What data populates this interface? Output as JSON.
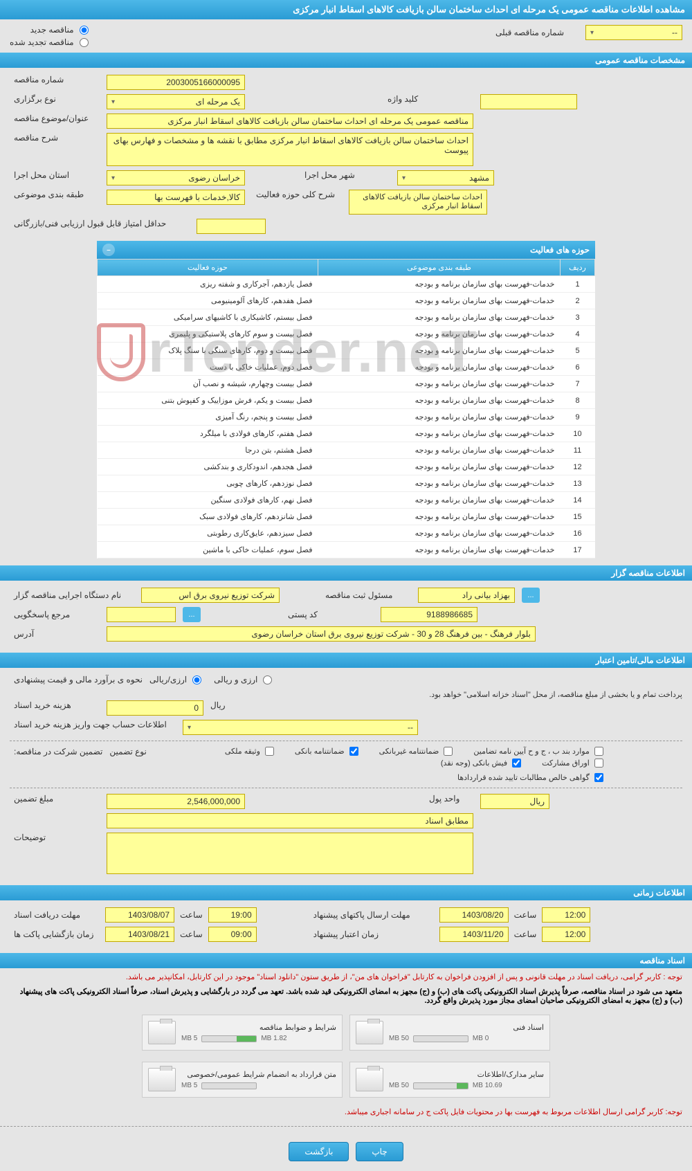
{
  "page_title": "مشاهده اطلاعات مناقصه عمومی یک مرحله ای احداث ساختمان سالن بازیافت کالاهای اسقاط انبار مرکزی",
  "top": {
    "radio_new": "مناقصه جدید",
    "radio_renew": "مناقصه تجدید شده",
    "prev_label": "شماره مناقصه قبلی",
    "prev_value": "--"
  },
  "sections": {
    "general": "مشخصات مناقصه عمومی",
    "organizer": "اطلاعات مناقصه گزار",
    "financial": "اطلاعات مالی/تامین اعتبار",
    "timing": "اطلاعات زمانی",
    "docs": "اسناد مناقصه"
  },
  "general": {
    "number_label": "شماره مناقصه",
    "number": "2003005166000095",
    "type_label": "نوع برگزاری",
    "type": "یک مرحله ای",
    "keyword_label": "کلید واژه",
    "keyword": "",
    "subject_label": "عنوان/موضوع مناقصه",
    "subject": "مناقصه عمومی یک مرحله ای احداث ساختمان سالن بازیافت کالاهای اسقاط انبار مرکزی",
    "desc_label": "شرح مناقصه",
    "desc": "احداث ساختمان سالن بازیافت کالاهای اسقاط انبار مرکزی مطابق با نقشه ها و مشخصات و فهارس بهای پیوست",
    "province_label": "استان محل اجرا",
    "province": "خراسان رضوی",
    "city_label": "شهر محل اجرا",
    "city": "مشهد",
    "category_label": "طبقه بندی موضوعی",
    "category": "کالا,خدمات با فهرست بها",
    "scope_label": "شرح کلی حوزه فعالیت",
    "scope": "احداث ساختمان سالن بازیافت کالاهای اسقاط انبار مرکزی",
    "minscore_label": "حداقل امتیاز قابل قبول ارزیابی فنی/بازرگانی",
    "minscore": ""
  },
  "activity": {
    "title": "حوزه های فعالیت",
    "columns": {
      "row": "ردیف",
      "category": "طبقه بندی موضوعی",
      "scope": "حوزه فعالیت"
    },
    "rows": [
      {
        "n": 1,
        "cat": "خدمات-فهرست بهای سازمان برنامه و بودجه",
        "scope": "فصل یازدهم، آجرکاری و شفته ریزی"
      },
      {
        "n": 2,
        "cat": "خدمات-فهرست بهای سازمان برنامه و بودجه",
        "scope": "فصل هفدهم، کارهای آلومینیومی"
      },
      {
        "n": 3,
        "cat": "خدمات-فهرست بهای سازمان برنامه و بودجه",
        "scope": "فصل بیستم، کاشیکاری با کاشیهای سرامیکی"
      },
      {
        "n": 4,
        "cat": "خدمات-فهرست بهای سازمان برنامه و بودجه",
        "scope": "فصل بیست و سوم کارهای پلاستیکی و پلیمری"
      },
      {
        "n": 5,
        "cat": "خدمات-فهرست بهای سازمان برنامه و بودجه",
        "scope": "فصل بیست و دوم، کارهای سنگی با سنگ پلاک"
      },
      {
        "n": 6,
        "cat": "خدمات-فهرست بهای سازمان برنامه و بودجه",
        "scope": "فصل دوم، عملیات خاکی با دست"
      },
      {
        "n": 7,
        "cat": "خدمات-فهرست بهای سازمان برنامه و بودجه",
        "scope": "فصل بیست وچهارم، شیشه و نصب آن"
      },
      {
        "n": 8,
        "cat": "خدمات-فهرست بهای سازمان برنامه و بودجه",
        "scope": "فصل بیست و یکم، فرش موزاییک و کفپوش بتنی"
      },
      {
        "n": 9,
        "cat": "خدمات-فهرست بهای سازمان برنامه و بودجه",
        "scope": "فصل بیست و پنجم، رنگ آمیزی"
      },
      {
        "n": 10,
        "cat": "خدمات-فهرست بهای سازمان برنامه و بودجه",
        "scope": "فصل هفتم، کارهای فولادی با میلگرد"
      },
      {
        "n": 11,
        "cat": "خدمات-فهرست بهای سازمان برنامه و بودجه",
        "scope": "فصل هشتم، بتن درجا"
      },
      {
        "n": 12,
        "cat": "خدمات-فهرست بهای سازمان برنامه و بودجه",
        "scope": "فصل هجدهم، اندودکاری و بندکشی"
      },
      {
        "n": 13,
        "cat": "خدمات-فهرست بهای سازمان برنامه و بودجه",
        "scope": "فصل نوزدهم، کارهای چوبی"
      },
      {
        "n": 14,
        "cat": "خدمات-فهرست بهای سازمان برنامه و بودجه",
        "scope": "فصل نهم، کارهای فولادی سنگین"
      },
      {
        "n": 15,
        "cat": "خدمات-فهرست بهای سازمان برنامه و بودجه",
        "scope": "فصل شانزدهم، کارهای فولادی سبک"
      },
      {
        "n": 16,
        "cat": "خدمات-فهرست بهای سازمان برنامه و بودجه",
        "scope": "فصل سیزدهم، عایق‌کاری رطوبتی"
      },
      {
        "n": 17,
        "cat": "خدمات-فهرست بهای سازمان برنامه و بودجه",
        "scope": "فصل سوم، عملیات خاکی با ماشین"
      }
    ]
  },
  "organizer": {
    "org_label": "نام دستگاه اجرایی مناقصه گزار",
    "org": "شرکت توزیع نیروی برق اس",
    "registrar_label": "مسئول ثبت مناقصه",
    "registrar": "بهزاد بیانی راد",
    "responder_label": "مرجع پاسخگویی",
    "responder": "",
    "postal_label": "کد پستی",
    "postal": "9188986685",
    "address_label": "آدرس",
    "address": "بلوار فرهنگ - بین فرهنگ 28 و 30 - شرکت توزیع نیروی برق استان خراسان رضوی"
  },
  "financial": {
    "estimate_label": "نحوه ی برآورد مالی و قیمت پیشنهادی",
    "opt_arzi": "ارزی/ریالی",
    "opt_rial": "ارزی و ریالی",
    "payment_note": "پرداخت تمام و یا بخشی از مبلغ مناقصه، از محل \"اسناد خزانه اسلامی\" خواهد بود.",
    "doc_cost_label": "هزینه خرید اسناد",
    "doc_cost": "0",
    "unit_rial": "ریال",
    "deposit_account_label": "اطلاعات حساب جهت واریز هزینه خرید اسناد",
    "deposit_account": "--",
    "guarantee_label": "تضمین شرکت در مناقصه:",
    "guarantee_type_label": "نوع تضمین",
    "cb_bank_guarantee": "ضمانتنامه بانکی",
    "cb_nonbank_guarantee": "ضمانتنامه غیربانکی",
    "cb_clauses": "موارد بند ب ، ج و ح آیین نامه تضامین",
    "cb_cash": "فیش بانکی (وجه نقد)",
    "cb_bonds": "اوراق مشارکت",
    "cb_property": "وثیقه ملکی",
    "cb_receivables": "گواهی خالص مطالبات تایید شده قراردادها",
    "amount_label": "مبلغ تضمین",
    "amount": "2,546,000,000",
    "currency_label": "واحد پول",
    "currency": "ریال",
    "per_docs": "مطابق اسناد",
    "notes_label": "توضیحات",
    "notes": ""
  },
  "timing": {
    "receive_label": "مهلت دریافت اسناد",
    "receive_date": "1403/08/07",
    "saat": "ساعت",
    "receive_time": "19:00",
    "send_label": "مهلت ارسال پاکتهای پیشنهاد",
    "send_date": "1403/08/20",
    "send_time": "12:00",
    "open_label": "زمان بازگشایی پاکت ها",
    "open_date": "1403/08/21",
    "open_time": "09:00",
    "valid_label": "زمان اعتبار پیشنهاد",
    "valid_date": "1403/11/20",
    "valid_time": "12:00"
  },
  "docs": {
    "note1": "توجه : کاربر گرامی، دریافت اسناد در مهلت قانونی و پس از افزودن فراخوان به کارتابل \"فراخوان های من\"، از طریق ستون \"دانلود اسناد\" موجود در این کارتابل، امکانپذیر می باشد.",
    "note2": "متعهد می شود در اسناد مناقصه، صرفاً پذیرش اسناد الکترونیکی پاکت های (ب) و (ج) مجهز به امضای الکترونیکی قید شده باشد. تعهد می گردد در بارگشایی و پذیرش اسناد، صرفاً اسناد الکترونیکی پاکت های پیشنهاد (ب) و (ج) مجهز به امضای الکترونیکی صاحبان امضای مجاز مورد پذیرش واقع گردد.",
    "note3": "توجه: کاربر گرامی ارسال اطلاعات مربوط به فهرست بها در محتویات فایل پاکت ج در سامانه اجباری میباشد.",
    "box1_title": "شرایط و ضوابط مناقصه",
    "box1_size": "1.82 MB",
    "box1_max": "5 MB",
    "box1_pct": 36,
    "box2_title": "اسناد فنی",
    "box2_size": "0 MB",
    "box2_max": "50 MB",
    "box2_pct": 0,
    "box3_title": "متن قرارداد به انضمام شرایط عمومی/خصوصی",
    "box3_size": "",
    "box3_max": "5 MB",
    "box3_pct": 0,
    "box4_title": "سایر مدارک/اطلاعات",
    "box4_size": "10.69 MB",
    "box4_max": "50 MB",
    "box4_pct": 21
  },
  "buttons": {
    "print": "چاپ",
    "back": "بازگشت"
  },
  "watermark": "rTender.neT"
}
